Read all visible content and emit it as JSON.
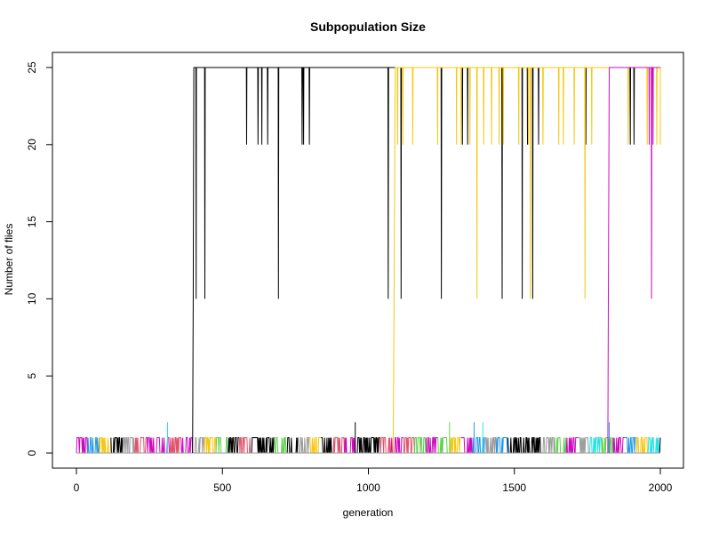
{
  "chart_data": {
    "type": "line",
    "title": "Subpopulation Size",
    "xlabel": "generation",
    "ylabel": "Number of flies",
    "xlim": [
      0,
      2000
    ],
    "ylim": [
      0,
      25
    ],
    "x_ticks": [
      0,
      500,
      1000,
      1500,
      2000
    ],
    "y_ticks": [
      0,
      5,
      10,
      15,
      20,
      25
    ],
    "grid": false,
    "legend": "none",
    "palette": [
      "#000000",
      "#DF536B",
      "#61D04F",
      "#2297E6",
      "#28E2E5",
      "#CD0BBC",
      "#F5C710",
      "#9E9E9E"
    ],
    "background_series": {
      "description_values": "many short-lived subpopulations oscillating between 0 and 1 across all generations 0-2000, with occasional spikes to 2",
      "min": 0,
      "max": 1,
      "spikes_to_2": [
        {
          "x": 312,
          "color": "#28E2E5"
        },
        {
          "x": 955,
          "color": "#000000"
        },
        {
          "x": 1278,
          "color": "#61D04F"
        },
        {
          "x": 1362,
          "color": "#2297E6"
        },
        {
          "x": 1392,
          "color": "#28E2E5"
        },
        {
          "x": 1825,
          "color": "#2297E6"
        }
      ]
    },
    "series": [
      {
        "color": "#000000",
        "x_start": 398,
        "x_end": 2000,
        "plateau": 25,
        "rise": [
          [
            398,
            0
          ],
          [
            400,
            10
          ],
          [
            402,
            25
          ]
        ],
        "dips": [
          {
            "x": 410,
            "y": 10
          },
          {
            "x": 440,
            "y": 10
          },
          {
            "x": 583,
            "y": 20
          },
          {
            "x": 622,
            "y": 20
          },
          {
            "x": 635,
            "y": 20
          },
          {
            "x": 655,
            "y": 20
          },
          {
            "x": 692,
            "y": 10
          },
          {
            "x": 773,
            "y": 20
          },
          {
            "x": 778,
            "y": 20
          },
          {
            "x": 798,
            "y": 20
          },
          {
            "x": 1068,
            "y": 10
          },
          {
            "x": 1112,
            "y": 10
          },
          {
            "x": 1250,
            "y": 10
          },
          {
            "x": 1322,
            "y": 20
          },
          {
            "x": 1340,
            "y": 20
          },
          {
            "x": 1458,
            "y": 10
          },
          {
            "x": 1527,
            "y": 10
          },
          {
            "x": 1545,
            "y": 20
          },
          {
            "x": 1563,
            "y": 10
          },
          {
            "x": 1583,
            "y": 20
          },
          {
            "x": 1745,
            "y": 20
          },
          {
            "x": 1897,
            "y": 20
          },
          {
            "x": 1910,
            "y": 20
          }
        ]
      },
      {
        "color": "#F5C710",
        "x_start": 1085,
        "x_end": 2000,
        "plateau": 25,
        "rise": [
          [
            1085,
            0
          ],
          [
            1088,
            10
          ],
          [
            1092,
            25
          ]
        ],
        "dips": [
          {
            "x": 1100,
            "y": 20
          },
          {
            "x": 1118,
            "y": 20
          },
          {
            "x": 1152,
            "y": 20
          },
          {
            "x": 1237,
            "y": 20
          },
          {
            "x": 1302,
            "y": 20
          },
          {
            "x": 1318,
            "y": 20
          },
          {
            "x": 1348,
            "y": 20
          },
          {
            "x": 1372,
            "y": 10
          },
          {
            "x": 1395,
            "y": 20
          },
          {
            "x": 1422,
            "y": 20
          },
          {
            "x": 1448,
            "y": 20
          },
          {
            "x": 1462,
            "y": 20
          },
          {
            "x": 1515,
            "y": 20
          },
          {
            "x": 1548,
            "y": 20
          },
          {
            "x": 1555,
            "y": 10
          },
          {
            "x": 1598,
            "y": 20
          },
          {
            "x": 1652,
            "y": 20
          },
          {
            "x": 1668,
            "y": 20
          },
          {
            "x": 1705,
            "y": 20
          },
          {
            "x": 1742,
            "y": 10
          },
          {
            "x": 1765,
            "y": 20
          },
          {
            "x": 1890,
            "y": 20
          },
          {
            "x": 1955,
            "y": 20
          },
          {
            "x": 1988,
            "y": 20
          }
        ]
      },
      {
        "color": "#CD0BBC",
        "x_start": 1820,
        "x_end": 2000,
        "plateau": 25,
        "rise": [
          [
            1820,
            0
          ],
          [
            1822,
            10
          ],
          [
            1825,
            25
          ]
        ],
        "dips": [
          {
            "x": 1962,
            "y": 20
          },
          {
            "x": 1970,
            "y": 10
          },
          {
            "x": 1975,
            "y": 20
          }
        ]
      }
    ]
  }
}
